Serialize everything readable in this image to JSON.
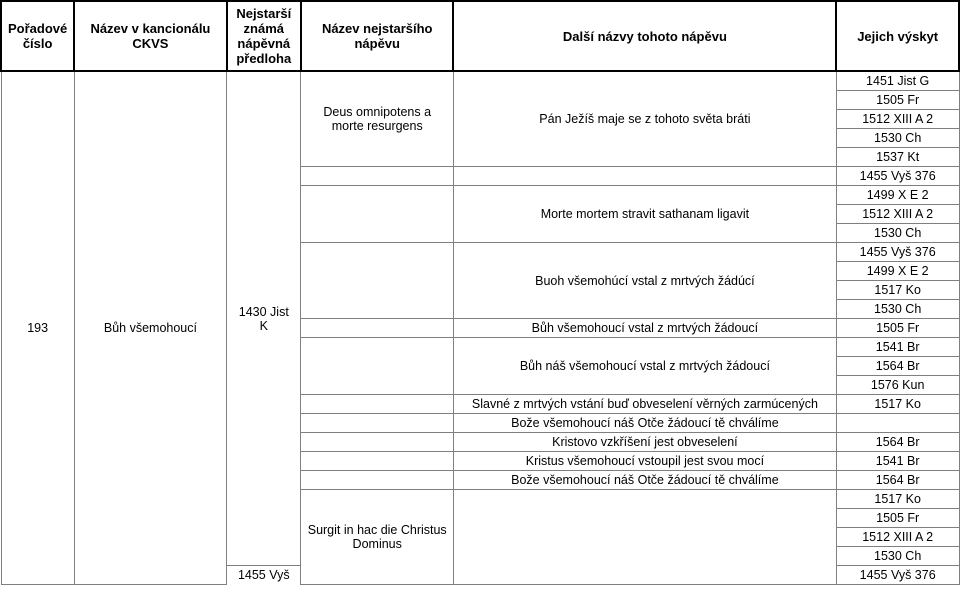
{
  "header": {
    "col1": "Pořadové číslo",
    "col2": "Název v kancionálu CKVS",
    "col3": "Nejstarší známá nápěvná předloha",
    "col4": "Název nejstaršího nápěvu",
    "col5": "Další názvy tohoto nápěvu",
    "col6": "Jejich výskyt"
  },
  "entry": {
    "poradove": "193",
    "nazev": "Bůh všemohoucí",
    "predloha": "1430 Jist K",
    "predloha_partial": "1455 Vyš",
    "nejstarsi_napev_rows": [
      "",
      "Deus omnipotens a morte resurgens",
      "",
      "",
      "",
      "",
      "Surgit in hac die Christus Dominus"
    ],
    "dalsi_rows": [
      "Pán Ježíš maje se z tohoto světa bráti",
      "",
      "Morte mortem stravit sathanam ligavit",
      "Buoh všemohúcí vstal z mrtvých žádúcí",
      "Bůh všemohoucí vstal z mrtvých žádoucí",
      "Bůh náš všemohoucí vstal z mrtvých žádoucí",
      "Slavné z mrtvých vstání buď obveselení věrných zarmúcených",
      "Bože všemohoucí náš Otče žádoucí tě chválíme",
      "Kristovo vzkříšení jest obveselení",
      "Kristus všemohoucí vstoupil jest svou mocí",
      "Bože všemohoucí náš Otče žádoucí tě chválíme",
      ""
    ],
    "vyskyt_groups": [
      [
        "1451 Jist G",
        "1505 Fr",
        "1512 XIII A 2",
        "1530 Ch",
        "1537 Kt"
      ],
      [
        "1455 Vyš 376"
      ],
      [
        "1499 X E 2",
        "1512 XIII A 2",
        "1530 Ch"
      ],
      [
        "1455 Vyš 376",
        "1499 X E 2",
        "1517 Ko",
        "1530 Ch"
      ],
      [
        "1505 Fr"
      ],
      [
        "1541 Br",
        "1564 Br",
        "1576 Kun"
      ],
      [
        "1517 Ko"
      ],
      [
        ""
      ],
      [
        "1564 Br"
      ],
      [
        "1541 Br"
      ],
      [
        "1564 Br"
      ],
      [
        "1517 Ko",
        "1505 Fr",
        "1512 XIII A 2",
        "1530 Ch",
        "1455 Vyš 376"
      ]
    ]
  },
  "style": {
    "border_color": "#7f7f7f",
    "header_border": "#000000",
    "font_size_body": 12.5,
    "font_size_header": 13,
    "background": "#ffffff"
  }
}
